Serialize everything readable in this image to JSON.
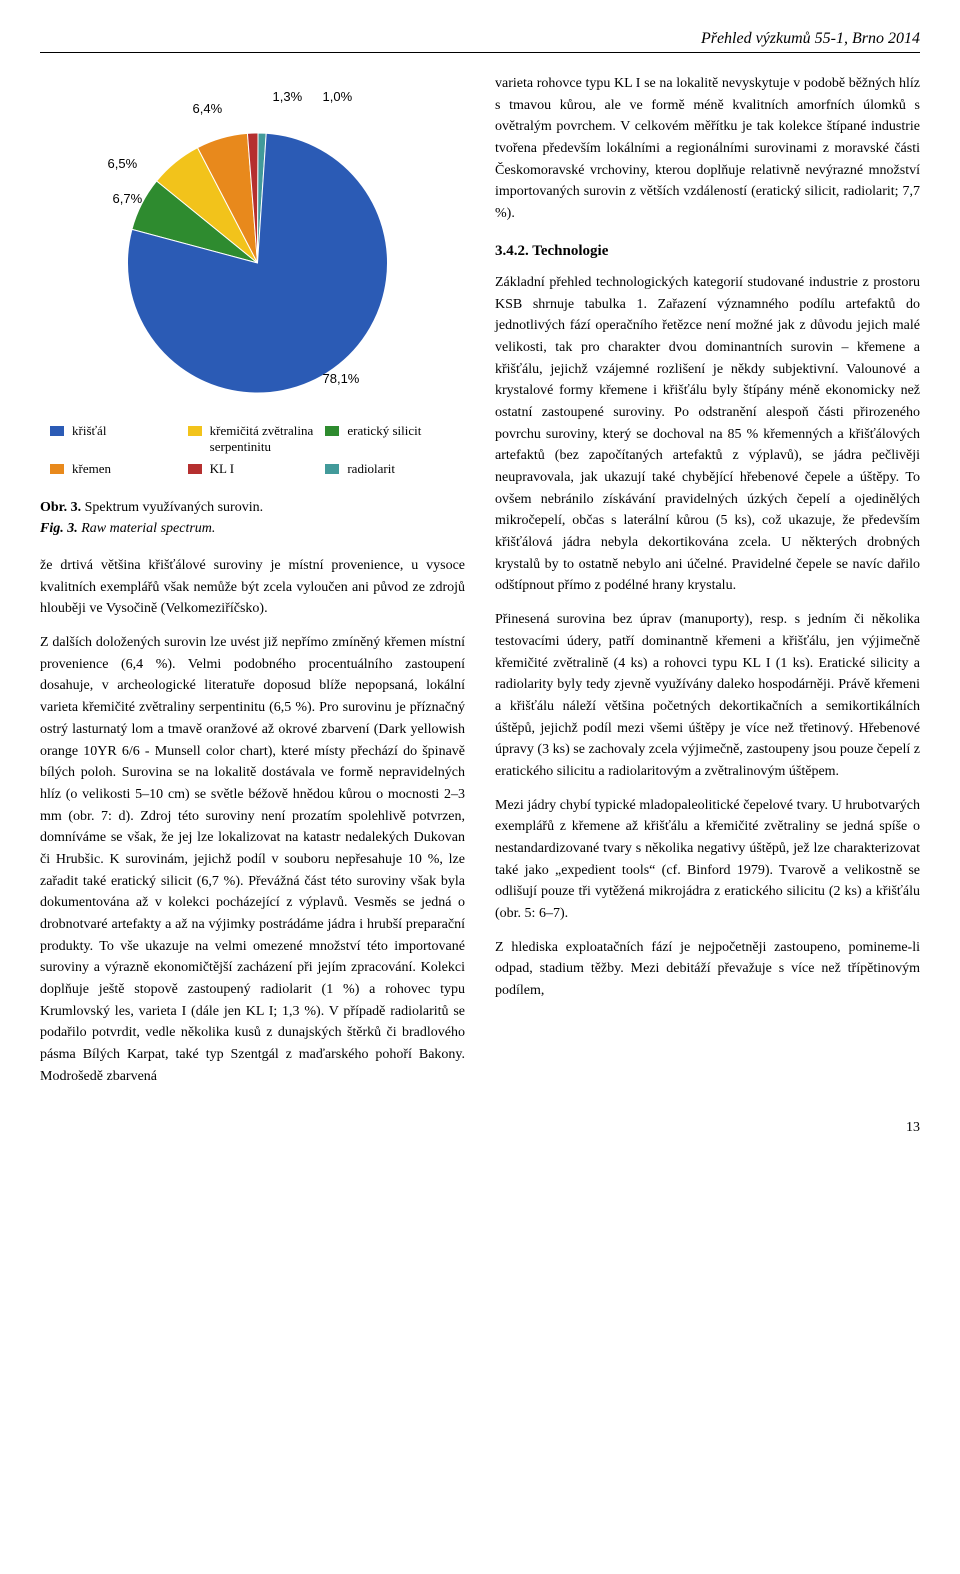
{
  "header": "Přehled výzkumů 55-1, Brno 2014",
  "pie": {
    "type": "pie",
    "background_color": "#ffffff",
    "slices": [
      {
        "key": "kristal",
        "label": "křišťál",
        "value": 78.1,
        "color": "#2b5bb5"
      },
      {
        "key": "silicit",
        "label": "eratický silicit",
        "value": 6.7,
        "color": "#2e8b2f"
      },
      {
        "key": "kremicita",
        "label": "křemičitá zvětralina serpentinitu",
        "value": 6.5,
        "color": "#f2c31b"
      },
      {
        "key": "kremen",
        "label": "křemen",
        "value": 6.4,
        "color": "#e8891c"
      },
      {
        "key": "kl1",
        "label": "KL I",
        "value": 1.3,
        "color": "#b52f2f"
      },
      {
        "key": "radiolarit",
        "label": "radiolarit",
        "value": 1.0,
        "color": "#429a9a"
      }
    ],
    "slice_labels": {
      "kristal": "78,1%",
      "silicit": "6,7%",
      "kremicita": "6,5%",
      "kremen": "6,4%",
      "kl1": "1,3%",
      "radiolarit": "1,0%"
    },
    "label_fontsize": 13
  },
  "legend_order": [
    "kristal",
    "kremicita",
    "silicit",
    "kremen",
    "kl1",
    "radiolarit"
  ],
  "caption": {
    "cz_a": "Obr. 3. ",
    "cz_b": "Spektrum využívaných surovin.",
    "en_a": "Fig. 3. ",
    "en_b": "Raw material spectrum."
  },
  "subheading": "3.4.2. Technologie",
  "left_paras": [
    "že drtivá většina křišťálové suroviny je místní provenience, u vysoce kvalitních exemplářů však nemůže být zcela vyloučen ani původ ze zdrojů hlouběji ve Vysočině (Velkomeziříčsko).",
    "Z dalších doložených surovin lze uvést již nepřímo zmíněný křemen místní provenience (6,4 %). Velmi podobného procentuálního zastoupení dosahuje, v archeologické literatuře doposud blíže nepopsaná, lokální varieta křemičité zvětraliny serpentinitu (6,5 %). Pro surovinu je příznačný ostrý lasturnatý lom a tmavě oranžové až okrové zbarvení (Dark yellowish orange 10YR 6/6 - Munsell color chart), které místy přechází do špinavě bílých poloh. Surovina se na lokalitě dostávala ve formě nepravidelných hlíz (o velikosti 5–10 cm) se světle béžově hnědou kůrou o mocnosti 2–3 mm (obr. 7: d). Zdroj této suroviny není prozatím spolehlivě potvrzen, domníváme se však, že jej lze lokalizovat na katastr nedalekých Dukovan či Hrubšic. K surovinám, jejichž podíl v souboru nepřesahuje 10 %, lze zařadit také eratický silicit (6,7 %). Převážná část této suroviny však byla dokumentována až v kolekci pocházející z výplavů. Vesměs se jedná o drobnotvaré artefakty a až na výjimky postrádáme jádra i hrubší preparační produkty. To vše ukazuje na velmi omezené množství této importované suroviny a výrazně ekonomičtější zacházení při jejím zpracování. Kolekci doplňuje ještě stopově zastoupený radiolarit (1 %) a rohovec typu Krumlovský les, varieta I (dále jen KL I; 1,3 %). V případě radiolaritů se podařilo potvrdit, vedle několika kusů z dunajských štěrků či bradlového pásma Bílých Karpat, také typ Szentgál z maďarského pohoří Bakony. Modrošedě zbarvená"
  ],
  "right_paras_top": [
    "varieta rohovce typu KL I se na lokalitě nevyskytuje v podobě běžných hlíz s tmavou kůrou, ale ve formě méně kvalitních amorfních úlomků s ovětralým povrchem. V celkovém měřítku je tak kolekce štípané industrie tvořena především lokálními a regionálními surovinami z moravské části Českomoravské vrchoviny, kterou doplňuje relativně nevýrazné množství importovaných surovin z větších vzdáleností (eratický silicit, radiolarit; 7,7 %)."
  ],
  "right_paras_bottom": [
    "Základní přehled technologických kategorií studované industrie z prostoru KSB shrnuje tabulka 1. Zařazení významného podílu artefaktů do jednotlivých fází operačního řetězce není možné jak z důvodu jejich malé velikosti, tak pro charakter dvou dominantních surovin – křemene a křišťálu, jejichž vzájemné rozlišení je někdy subjektivní. Valounové a krystalové formy křemene i křišťálu byly štípány méně ekonomicky než ostatní zastoupené suroviny. Po odstranění alespoň části přirozeného povrchu suroviny, který se dochoval na 85 % křemenných a křišťálových artefaktů (bez započítaných artefaktů z výplavů), se jádra pečlivěji neupravovala, jak ukazují také chybějící hřebenové čepele a úštěpy. To ovšem nebránilo získávání pravidelných úzkých čepelí a ojedinělých mikročepelí, občas s laterální kůrou (5 ks), což ukazuje, že především křišťálová jádra nebyla dekortikována zcela. U některých drobných krystalů by to ostatně nebylo ani účelné. Pravidelné čepele se navíc dařilo odštípnout přímo z podélné hrany krystalu.",
    "Přinesená surovina bez úprav (manuporty), resp. s jedním či několika testovacími údery, patří dominantně křemeni a křišťálu, jen výjimečně křemičité zvětralině (4 ks) a rohovci typu KL I (1 ks). Eratické silicity a radiolarity byly tedy zjevně využívány daleko hospodárněji. Právě křemeni a křišťálu náleží většina početných dekortikačních a semikortikálních úštěpů, jejichž podíl mezi všemi úštěpy je více než třetinový. Hřebenové úpravy (3 ks) se zachovaly zcela výjimečně, zastoupeny jsou pouze čepelí z eratického silicitu a radiolaritovým a zvětralinovým úštěpem.",
    "Mezi jádry chybí typické mladopaleolitické čepelové tvary. U hrubotvarých exemplářů z křemene až křišťálu a křemičité zvětraliny se jedná spíše o nestandardizované tvary s několika negativy úštěpů, jež lze charakterizovat také jako „expedient tools“ (cf. Binford 1979). Tvarově a velikostně se odlišují pouze tři vytěžená mikrojádra z eratického silicitu (2 ks) a křišťálu (obr. 5: 6–7).",
    "Z hlediska exploatačních fází je nejpočetněji zastoupeno, pomineme-li odpad, stadium těžby. Mezi debitáží převažuje s více než třípětinovým podílem,"
  ],
  "pagenum": "13"
}
